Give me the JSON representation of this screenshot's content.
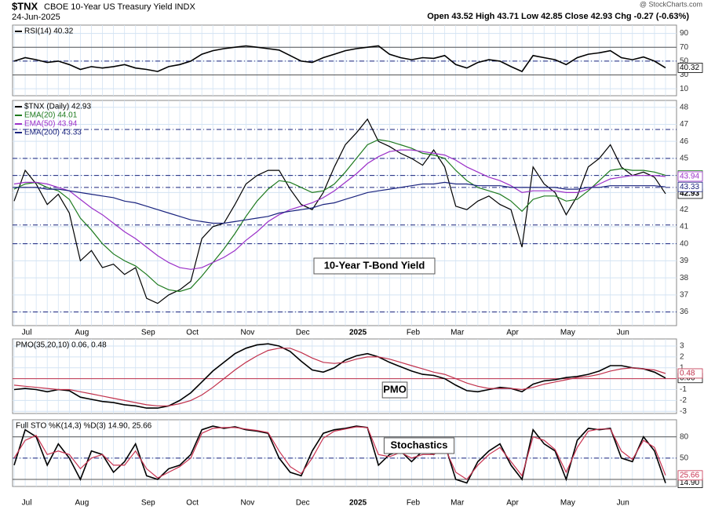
{
  "header": {
    "symbol": "$TNX",
    "name": "CBOE 10-Year US Treasury Yield INDX",
    "date": "24-Jun-2025",
    "quote": "Open 43.52  High 43.71  Low 42.85  Close 42.93  Chg -0.27 (-0.63%)",
    "credit": "@ StockCharts.com"
  },
  "chart_data": [
    {
      "type": "line",
      "ylim": [
        0,
        102
      ],
      "yticks": [
        10,
        30,
        50,
        70,
        90
      ],
      "hlines": [
        30,
        70
      ],
      "dashed_hlines": [
        50
      ],
      "series": [
        {
          "name": "RSI(14) 40.32",
          "color": "#000000",
          "tag": "40.32",
          "values": [
            50,
            55,
            52,
            48,
            50,
            45,
            38,
            42,
            40,
            42,
            45,
            40,
            38,
            35,
            42,
            45,
            50,
            60,
            65,
            68,
            70,
            72,
            70,
            68,
            66,
            58,
            50,
            48,
            55,
            60,
            65,
            68,
            70,
            72,
            60,
            55,
            52,
            55,
            54,
            58,
            45,
            40,
            48,
            52,
            50,
            42,
            35,
            58,
            55,
            52,
            45,
            55,
            60,
            62,
            65,
            55,
            52,
            56,
            50,
            40.32
          ]
        }
      ]
    },
    {
      "type": "line",
      "ylim": [
        35.2,
        48.4
      ],
      "yticks": [
        36,
        37,
        38,
        39,
        40,
        41,
        42,
        43,
        44,
        45,
        46,
        47,
        48
      ],
      "dashed_hlines": [
        36,
        40,
        41.1,
        43.3,
        44,
        45,
        46.7
      ],
      "annotation": "10-Year T-Bond Yield",
      "categories": [
        null,
        "Jul",
        null,
        null,
        null,
        null,
        "Aug",
        null,
        null,
        null,
        null,
        null,
        "Sep",
        null,
        null,
        null,
        "Oct",
        null,
        null,
        null,
        null,
        "Nov",
        null,
        null,
        null,
        null,
        "Dec",
        null,
        null,
        null,
        null,
        "2025",
        null,
        null,
        null,
        null,
        "Feb",
        null,
        null,
        null,
        "Mar",
        null,
        null,
        null,
        null,
        "Apr",
        null,
        null,
        null,
        null,
        "May",
        null,
        null,
        null,
        null,
        "Jun",
        null,
        null,
        null,
        null
      ],
      "series": [
        {
          "name": "$TNX (Daily) 42.93",
          "color": "#000000",
          "tag": "42.93",
          "values": [
            42.5,
            44.3,
            43.5,
            42.3,
            42.9,
            41.8,
            39.0,
            39.6,
            38.6,
            38.8,
            38.2,
            38.6,
            36.8,
            36.5,
            37.0,
            37.3,
            37.8,
            40.3,
            41.0,
            41.2,
            42.3,
            43.5,
            44.0,
            44.3,
            44.3,
            43.2,
            42.3,
            42.0,
            43.0,
            44.5,
            45.8,
            46.5,
            47.3,
            46.0,
            45.7,
            45.3,
            45.0,
            44.6,
            45.5,
            44.5,
            42.2,
            42.0,
            42.5,
            42.8,
            42.3,
            42.0,
            39.8,
            44.5,
            43.5,
            43.0,
            41.7,
            42.8,
            44.5,
            45.0,
            45.8,
            44.5,
            44.0,
            44.2,
            43.9,
            42.93
          ]
        },
        {
          "name": "EMA(20) 44.01",
          "color": "#1e7a1e",
          "tag": "44.01",
          "values": [
            43.2,
            43.5,
            43.6,
            43.3,
            43.1,
            42.6,
            41.5,
            40.8,
            40.0,
            39.4,
            39.0,
            38.7,
            38.2,
            37.6,
            37.3,
            37.2,
            37.4,
            38.1,
            38.9,
            39.7,
            40.6,
            41.6,
            42.5,
            43.2,
            43.7,
            43.6,
            43.3,
            43.0,
            43.1,
            43.5,
            44.2,
            45.0,
            45.8,
            46.1,
            46.0,
            45.8,
            45.6,
            45.3,
            45.2,
            45.0,
            44.3,
            43.7,
            43.3,
            43.1,
            42.9,
            42.5,
            41.9,
            42.6,
            42.8,
            42.8,
            42.5,
            42.6,
            43.1,
            43.7,
            44.3,
            44.4,
            44.3,
            44.3,
            44.2,
            44.01
          ]
        },
        {
          "name": "EMA(50) 43.94",
          "color": "#9b30c8",
          "tag": "43.94",
          "values": [
            43.5,
            43.6,
            43.6,
            43.5,
            43.3,
            43.1,
            42.6,
            42.1,
            41.7,
            41.2,
            40.7,
            40.3,
            39.8,
            39.3,
            38.9,
            38.6,
            38.5,
            38.6,
            38.9,
            39.2,
            39.6,
            40.2,
            40.7,
            41.3,
            41.7,
            42.0,
            42.2,
            42.4,
            42.7,
            43.1,
            43.6,
            44.1,
            44.7,
            45.1,
            45.4,
            45.5,
            45.5,
            45.4,
            45.3,
            45.2,
            44.9,
            44.5,
            44.2,
            43.9,
            43.7,
            43.4,
            43.0,
            43.1,
            43.1,
            43.1,
            43.0,
            43.0,
            43.2,
            43.5,
            43.8,
            43.9,
            44.0,
            44.0,
            44.0,
            43.94
          ]
        },
        {
          "name": "EMA(200) 43.33",
          "color": "#1a237e",
          "tag": "43.33",
          "values": [
            43.3,
            43.3,
            43.3,
            43.2,
            43.2,
            43.1,
            43.0,
            42.9,
            42.8,
            42.7,
            42.5,
            42.4,
            42.2,
            42.0,
            41.8,
            41.6,
            41.4,
            41.3,
            41.2,
            41.2,
            41.3,
            41.4,
            41.5,
            41.6,
            41.8,
            41.9,
            42.0,
            42.1,
            42.3,
            42.4,
            42.6,
            42.8,
            43.0,
            43.1,
            43.2,
            43.3,
            43.4,
            43.5,
            43.5,
            43.6,
            43.5,
            43.5,
            43.4,
            43.4,
            43.4,
            43.3,
            43.3,
            43.3,
            43.3,
            43.3,
            43.2,
            43.2,
            43.3,
            43.3,
            43.4,
            43.4,
            43.4,
            43.4,
            43.4,
            43.33
          ]
        }
      ]
    },
    {
      "type": "line",
      "title": "PMO(35,20,10) 0.06, 0.48",
      "annotation": "PMO",
      "ylim": [
        -3.2,
        3.65
      ],
      "yticks": [
        -3,
        -2,
        -1,
        0,
        1,
        2,
        3
      ],
      "red_hlines": [
        0
      ],
      "series": [
        {
          "color": "#000000",
          "tag": "0.06",
          "values": [
            -1.0,
            -0.9,
            -1.0,
            -1.2,
            -1.0,
            -1.1,
            -1.7,
            -1.9,
            -2.1,
            -2.2,
            -2.4,
            -2.5,
            -2.7,
            -2.7,
            -2.5,
            -2.0,
            -1.3,
            -0.3,
            0.7,
            1.5,
            2.3,
            2.8,
            3.1,
            3.2,
            3.0,
            2.5,
            1.6,
            0.8,
            0.6,
            1.0,
            1.7,
            2.1,
            2.3,
            2.0,
            1.5,
            1.1,
            0.7,
            0.4,
            0.3,
            0.0,
            -0.6,
            -1.1,
            -1.2,
            -1.0,
            -0.8,
            -0.9,
            -1.2,
            -0.5,
            -0.2,
            -0.1,
            0.1,
            0.2,
            0.4,
            0.7,
            1.2,
            1.2,
            1.0,
            0.9,
            0.6,
            0.06
          ]
        },
        {
          "color": "#c0304b",
          "tag": "0.48",
          "values": [
            -0.6,
            -0.7,
            -0.8,
            -0.9,
            -1.0,
            -1.0,
            -1.2,
            -1.4,
            -1.6,
            -1.8,
            -2.0,
            -2.2,
            -2.4,
            -2.5,
            -2.5,
            -2.3,
            -2.0,
            -1.5,
            -0.8,
            0.0,
            0.8,
            1.5,
            2.1,
            2.6,
            2.8,
            2.8,
            2.4,
            1.9,
            1.5,
            1.4,
            1.5,
            1.8,
            2.0,
            2.0,
            1.8,
            1.5,
            1.2,
            0.9,
            0.6,
            0.4,
            0.0,
            -0.4,
            -0.7,
            -0.9,
            -0.9,
            -0.9,
            -1.0,
            -0.8,
            -0.5,
            -0.3,
            -0.1,
            0.1,
            0.2,
            0.4,
            0.7,
            0.9,
            1.0,
            0.9,
            0.8,
            0.48
          ]
        }
      ]
    },
    {
      "type": "line",
      "title": "Full STO %K(14,3) %D(3) 14.90, 25.66",
      "annotation": "Stochastics",
      "ylim": [
        10,
        104
      ],
      "yticks": [
        20,
        50,
        80
      ],
      "hlines": [
        20,
        80
      ],
      "dashed_hlines": [
        50
      ],
      "series": [
        {
          "color": "#000000",
          "tag": "14.90",
          "values": [
            40,
            90,
            80,
            40,
            70,
            50,
            20,
            60,
            55,
            30,
            45,
            70,
            25,
            20,
            35,
            40,
            55,
            90,
            95,
            92,
            94,
            90,
            88,
            85,
            50,
            30,
            25,
            60,
            85,
            90,
            92,
            95,
            93,
            40,
            55,
            60,
            45,
            60,
            55,
            70,
            20,
            15,
            45,
            60,
            70,
            40,
            20,
            90,
            70,
            60,
            20,
            75,
            92,
            90,
            92,
            50,
            45,
            80,
            60,
            14.9
          ]
        },
        {
          "color": "#c83250",
          "tag": "25.66",
          "values": [
            50,
            75,
            82,
            55,
            60,
            55,
            35,
            50,
            55,
            40,
            40,
            60,
            35,
            22,
            30,
            38,
            50,
            85,
            92,
            93,
            93,
            91,
            89,
            86,
            60,
            38,
            28,
            50,
            78,
            88,
            91,
            94,
            93,
            55,
            52,
            58,
            50,
            55,
            55,
            65,
            30,
            20,
            40,
            55,
            65,
            45,
            25,
            80,
            75,
            62,
            30,
            65,
            88,
            91,
            91,
            60,
            48,
            75,
            65,
            25.66
          ]
        }
      ]
    }
  ]
}
